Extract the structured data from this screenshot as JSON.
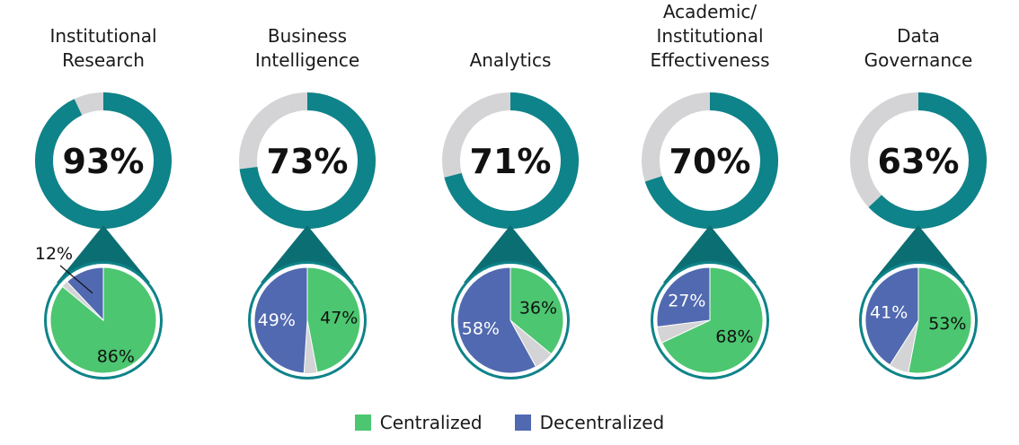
{
  "colors": {
    "ring": "#0e8389",
    "ring_remainder": "#d4d4d6",
    "pie_border": "#0e8389",
    "connector": "#0b6e72",
    "centralized": "#4cc670",
    "decentralized": "#5169b0",
    "other": "#d4d4d6",
    "label_dark": "#111111",
    "label_light": "#ffffff"
  },
  "legend": {
    "centralized": "Centralized",
    "decentralized": "Decentralized"
  },
  "chart_data": {
    "type": "pie",
    "groups": [
      {
        "title_lines": [
          "Institutional",
          "Research"
        ],
        "overall_pct": 93,
        "overall_label": "93%",
        "centralized": 86,
        "centralized_label": "86%",
        "decentralized": 12,
        "decentralized_label": "12%"
      },
      {
        "title_lines": [
          "Business",
          "Intelligence"
        ],
        "overall_pct": 73,
        "overall_label": "73%",
        "centralized": 47,
        "centralized_label": "47%",
        "decentralized": 49,
        "decentralized_label": "49%"
      },
      {
        "title_lines": [
          "Analytics"
        ],
        "overall_pct": 71,
        "overall_label": "71%",
        "centralized": 36,
        "centralized_label": "36%",
        "decentralized": 58,
        "decentralized_label": "58%"
      },
      {
        "title_lines": [
          "Academic/",
          "Institutional",
          "Effectiveness"
        ],
        "overall_pct": 70,
        "overall_label": "70%",
        "centralized": 68,
        "centralized_label": "68%",
        "decentralized": 27,
        "decentralized_label": "27%"
      },
      {
        "title_lines": [
          "Data",
          "Governance"
        ],
        "overall_pct": 63,
        "overall_label": "63%",
        "centralized": 53,
        "centralized_label": "53%",
        "decentralized": 41,
        "decentralized_label": "41%"
      }
    ]
  }
}
